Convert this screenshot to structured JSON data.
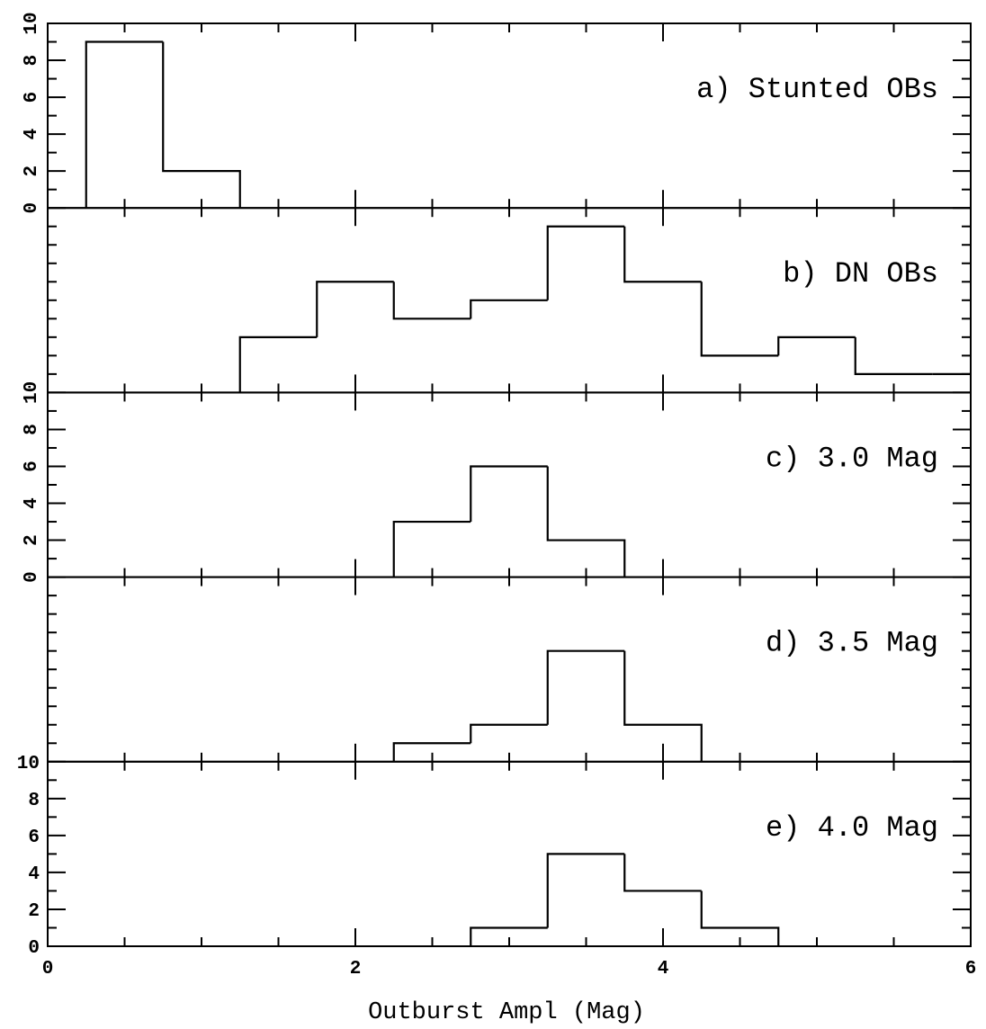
{
  "chart_data": [
    {
      "type": "histogram",
      "label": "a) Stunted OBs",
      "bins": [
        0.25,
        0.75,
        1.25
      ],
      "values": [
        9,
        2
      ],
      "xlim": [
        0,
        6
      ],
      "xticks": [
        0,
        2,
        4,
        6
      ],
      "xminorticks": [
        0.5,
        1,
        1.5,
        2.5,
        3,
        3.5,
        4.5,
        5,
        5.5
      ],
      "ylim": [
        0,
        10
      ],
      "yticks": [
        0,
        2,
        4,
        6,
        8,
        10
      ],
      "yminorticks": [
        1,
        3,
        5,
        7,
        9
      ],
      "ytick_rotation": 90,
      "color": "#000000"
    },
    {
      "type": "histogram",
      "label": "b) DN OBs",
      "bins": [
        1.25,
        1.75,
        2.25,
        2.75,
        3.25,
        3.75,
        4.25,
        4.75,
        5.25,
        5.75,
        6.25
      ],
      "values": [
        3,
        6,
        4,
        5,
        9,
        6,
        2,
        3,
        1,
        1
      ],
      "xlim": [
        0,
        6
      ],
      "xticks": [
        0,
        2,
        4,
        6
      ],
      "xminorticks": [
        0.5,
        1,
        1.5,
        2.5,
        3,
        3.5,
        4.5,
        5,
        5.5
      ],
      "ylim": [
        0,
        10
      ],
      "yminorticks": [
        1,
        2,
        3,
        4,
        5,
        6,
        7,
        8,
        9
      ],
      "color": "#000000"
    },
    {
      "type": "histogram",
      "label": "c) 3.0 Mag",
      "bins": [
        2.25,
        2.75,
        3.25,
        3.75
      ],
      "values": [
        3,
        6,
        2
      ],
      "xlim": [
        0,
        6
      ],
      "xticks": [
        0,
        2,
        4,
        6
      ],
      "xminorticks": [
        0.5,
        1,
        1.5,
        2.5,
        3,
        3.5,
        4.5,
        5,
        5.5
      ],
      "ylim": [
        0,
        10
      ],
      "yticks": [
        0,
        2,
        4,
        6,
        8,
        10
      ],
      "yminorticks": [
        1,
        3,
        5,
        7,
        9
      ],
      "ytick_rotation": 90,
      "color": "#000000"
    },
    {
      "type": "histogram",
      "label": "d) 3.5 Mag",
      "bins": [
        2.25,
        2.75,
        3.25,
        3.75,
        4.25
      ],
      "values": [
        1,
        2,
        6,
        2
      ],
      "xlim": [
        0,
        6
      ],
      "xticks": [
        0,
        2,
        4,
        6
      ],
      "xminorticks": [
        0.5,
        1,
        1.5,
        2.5,
        3,
        3.5,
        4.5,
        5,
        5.5
      ],
      "ylim": [
        0,
        10
      ],
      "yminorticks": [
        1,
        2,
        3,
        4,
        5,
        6,
        7,
        8,
        9
      ],
      "color": "#000000"
    },
    {
      "type": "histogram",
      "label": "e) 4.0 Mag",
      "bins": [
        2.75,
        3.25,
        3.75,
        4.25,
        4.75
      ],
      "values": [
        1,
        5,
        3,
        1
      ],
      "xlim": [
        0,
        6
      ],
      "xticks": [
        0,
        2,
        4,
        6
      ],
      "xminorticks": [
        0.5,
        1,
        1.5,
        2.5,
        3,
        3.5,
        4.5,
        5,
        5.5
      ],
      "ylim": [
        0,
        10
      ],
      "yticks": [
        0,
        2,
        4,
        6,
        8,
        10
      ],
      "yminorticks": [
        1,
        3,
        5,
        7,
        9
      ],
      "ytick_rotation": 0,
      "xlabel": "Outburst Ampl (Mag)",
      "color": "#000000"
    }
  ]
}
